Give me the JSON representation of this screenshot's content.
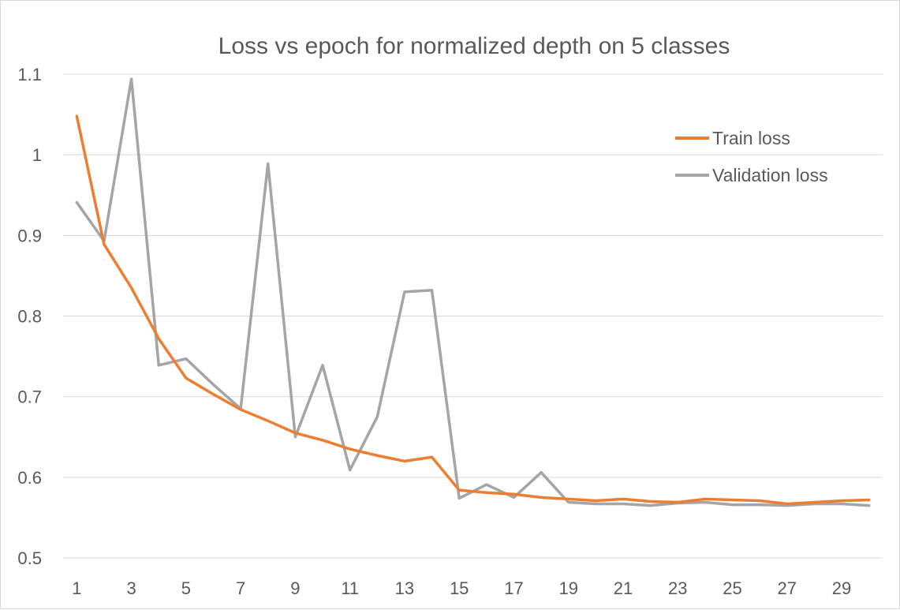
{
  "chart_data": {
    "type": "line",
    "title": "Loss vs epoch for normalized depth on 5 classes",
    "xlabel": "",
    "ylabel": "",
    "x": [
      1,
      2,
      3,
      4,
      5,
      6,
      7,
      8,
      9,
      10,
      11,
      12,
      13,
      14,
      15,
      16,
      17,
      18,
      19,
      20,
      21,
      22,
      23,
      24,
      25,
      26,
      27,
      28,
      29,
      30
    ],
    "x_tick_labels": [
      "1",
      "3",
      "5",
      "7",
      "9",
      "11",
      "13",
      "15",
      "17",
      "19",
      "21",
      "23",
      "25",
      "27",
      "29"
    ],
    "y_tick_labels": [
      "0.5",
      "0.6",
      "0.7",
      "0.8",
      "0.9",
      "1",
      "1.1"
    ],
    "ylim": [
      0.5,
      1.1
    ],
    "grid": "horizontal",
    "legend_position": "top-right",
    "series": [
      {
        "name": "Train loss",
        "color": "#ED7D31",
        "values": [
          1.048,
          0.889,
          0.835,
          0.772,
          0.723,
          0.703,
          0.684,
          0.67,
          0.655,
          0.646,
          0.635,
          0.627,
          0.62,
          0.625,
          0.584,
          0.581,
          0.579,
          0.575,
          0.573,
          0.571,
          0.573,
          0.57,
          0.569,
          0.573,
          0.572,
          0.571,
          0.567,
          0.569,
          0.571,
          0.572
        ]
      },
      {
        "name": "Validation loss",
        "color": "#A5A5A5",
        "values": [
          0.941,
          0.893,
          1.094,
          0.739,
          0.747,
          0.715,
          0.685,
          0.989,
          0.65,
          0.739,
          0.609,
          0.675,
          0.83,
          0.832,
          0.574,
          0.591,
          0.575,
          0.606,
          0.569,
          0.567,
          0.567,
          0.565,
          0.568,
          0.569,
          0.566,
          0.566,
          0.565,
          0.567,
          0.567,
          0.565
        ]
      }
    ]
  }
}
